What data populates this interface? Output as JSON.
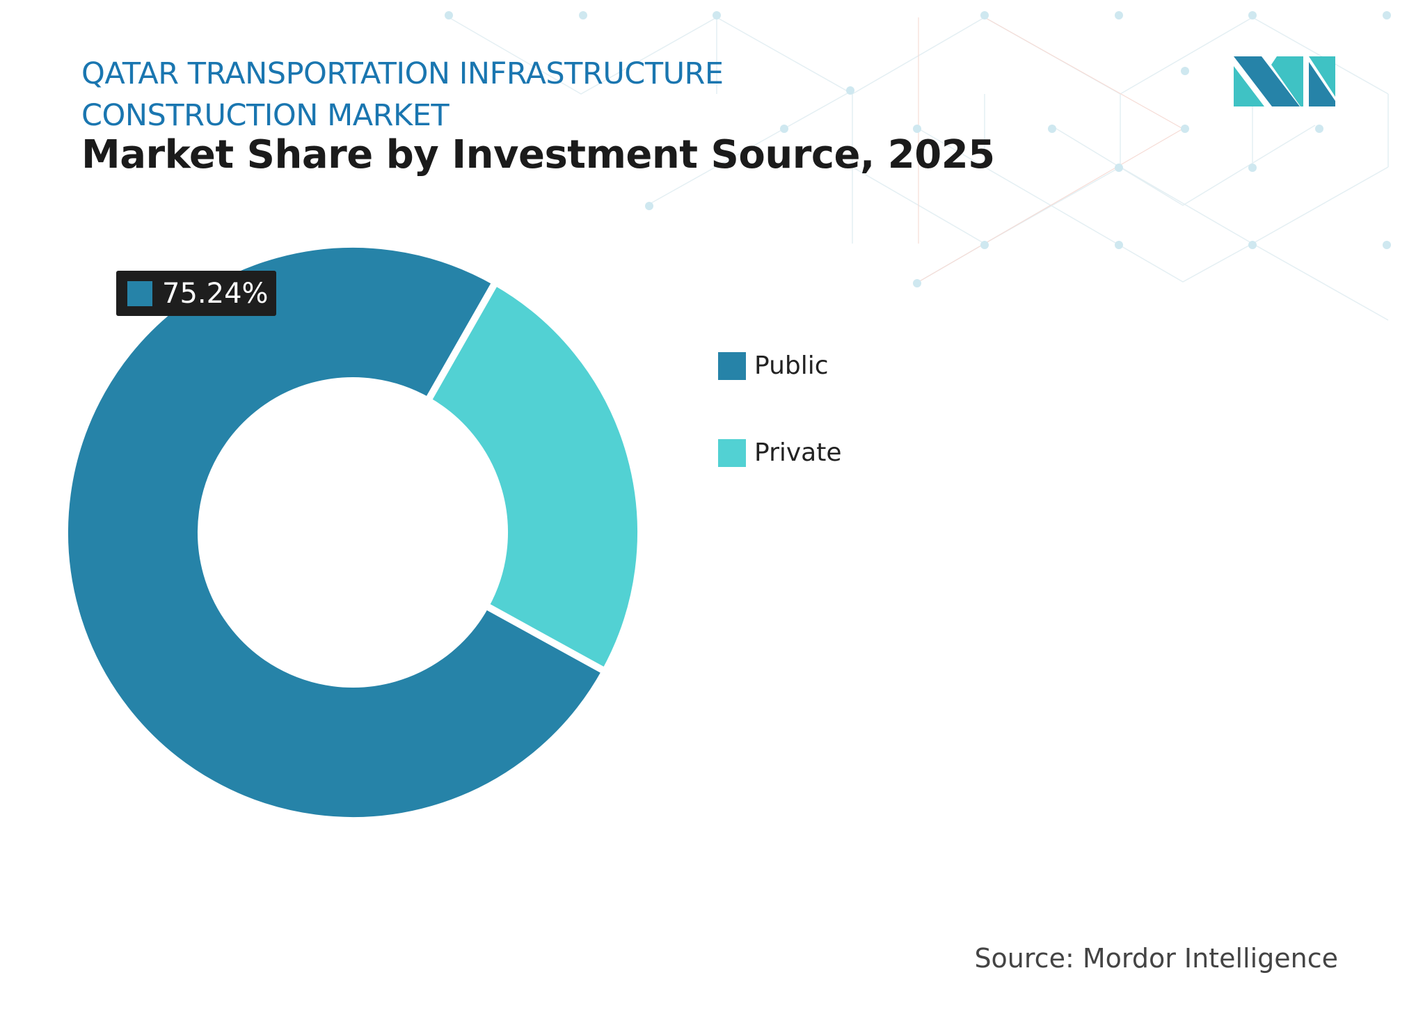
{
  "header": {
    "title_line1": "QATAR TRANSPORTATION INFRASTRUCTURE",
    "title_line2": "CONSTRUCTION MARKET",
    "subtitle": "Market Share by Investment Source, 2025"
  },
  "chart_data": {
    "type": "pie",
    "variant": "donut",
    "title": "Market Share by Investment Source, 2025",
    "series": [
      {
        "name": "Public",
        "value": 75.24,
        "color": "#2683a8"
      },
      {
        "name": "Private",
        "value": 24.76,
        "color": "#52d1d3"
      }
    ],
    "data_labels": [
      {
        "series": "Public",
        "text": "75.24%"
      }
    ],
    "legend_position": "right"
  },
  "legend": {
    "items": [
      {
        "label": "Public",
        "color": "#2683a8"
      },
      {
        "label": "Private",
        "color": "#52d1d3"
      }
    ]
  },
  "label": {
    "text": "75.24%"
  },
  "source": "Source: Mordor Intelligence",
  "logo": {
    "name": "Mordor Intelligence logo",
    "icon": "mi-logo"
  }
}
